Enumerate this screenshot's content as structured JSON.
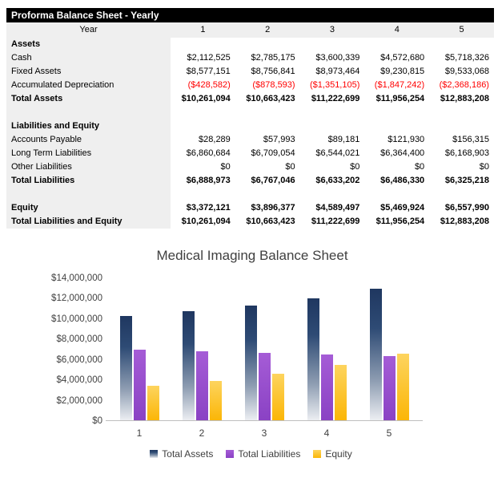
{
  "colors": {
    "table_header_bg": "#000000",
    "table_header_text": "#FFFFFF",
    "row_shade_bg": "#EFEFEF",
    "negative_value": "#FF0000",
    "axis_line": "#BFBFBF",
    "chart_text": "#404040",
    "series_total_assets": "#1F3760",
    "series_total_liabilities": "#9A4FC9",
    "series_equity": "#FBB607"
  },
  "table": {
    "title": "Proforma Balance Sheet - Yearly",
    "year_label": "Year",
    "year_columns": [
      "1",
      "2",
      "3",
      "4",
      "5"
    ],
    "rows": [
      {
        "type": "section",
        "label": "Assets",
        "values": [
          "",
          "",
          "",
          "",
          ""
        ]
      },
      {
        "type": "normal",
        "label": "Cash",
        "values": [
          "$2,112,525",
          "$2,785,175",
          "$3,600,339",
          "$4,572,680",
          "$5,718,326"
        ]
      },
      {
        "type": "normal",
        "label": "Fixed Assets",
        "values": [
          "$8,577,151",
          "$8,756,841",
          "$8,973,464",
          "$9,230,815",
          "$9,533,068"
        ]
      },
      {
        "type": "negative",
        "label": "Accumulated Depreciation",
        "values": [
          "($428,582)",
          "($878,593)",
          "($1,351,105)",
          "($1,847,242)",
          "($2,368,186)"
        ]
      },
      {
        "type": "total",
        "label": "Total Assets",
        "values": [
          "$10,261,094",
          "$10,663,423",
          "$11,222,699",
          "$11,956,254",
          "$12,883,208"
        ]
      },
      {
        "type": "spacer",
        "label": "",
        "values": [
          "",
          "",
          "",
          "",
          ""
        ]
      },
      {
        "type": "section",
        "label": "Liabilities and Equity",
        "values": [
          "",
          "",
          "",
          "",
          ""
        ]
      },
      {
        "type": "normal",
        "label": "Accounts Payable",
        "values": [
          "$28,289",
          "$57,993",
          "$89,181",
          "$121,930",
          "$156,315"
        ]
      },
      {
        "type": "normal",
        "label": "Long Term Liabilities",
        "values": [
          "$6,860,684",
          "$6,709,054",
          "$6,544,021",
          "$6,364,400",
          "$6,168,903"
        ]
      },
      {
        "type": "normal",
        "label": "Other Liabilities",
        "values": [
          "$0",
          "$0",
          "$0",
          "$0",
          "$0"
        ]
      },
      {
        "type": "total",
        "label": "Total Liabilities",
        "values": [
          "$6,888,973",
          "$6,767,046",
          "$6,633,202",
          "$6,486,330",
          "$6,325,218"
        ]
      },
      {
        "type": "spacer",
        "label": "",
        "values": [
          "",
          "",
          "",
          "",
          ""
        ]
      },
      {
        "type": "total",
        "label": "Equity",
        "values": [
          "$3,372,121",
          "$3,896,377",
          "$4,589,497",
          "$5,469,924",
          "$6,557,990"
        ]
      },
      {
        "type": "total",
        "label": "Total Liabilities and Equity",
        "values": [
          "$10,261,094",
          "$10,663,423",
          "$11,222,699",
          "$11,956,254",
          "$12,883,208"
        ]
      }
    ]
  },
  "chart_data": {
    "type": "bar",
    "title": "Medical Imaging Balance Sheet",
    "categories": [
      "1",
      "2",
      "3",
      "4",
      "5"
    ],
    "series": [
      {
        "name": "Total Assets",
        "values": [
          10261094,
          10663423,
          11222699,
          11956254,
          12883208
        ],
        "gradient": [
          "#1F3760 0%",
          "#2E4B75 30%",
          "#8E9DB2 70%",
          "#ECEEF2 100%"
        ]
      },
      {
        "name": "Total Liabilities",
        "values": [
          6888973,
          6767046,
          6633202,
          6486330,
          6325218
        ],
        "gradient": [
          "#A55CD6 0%",
          "#8A42C4 100%"
        ]
      },
      {
        "name": "Equity",
        "values": [
          3372121,
          3896377,
          4589497,
          5469924,
          6557990
        ],
        "gradient": [
          "#FDD45E 0%",
          "#FBB607 100%"
        ]
      }
    ],
    "xlabel": "",
    "ylabel": "",
    "ylim": [
      0,
      14000000
    ],
    "y_ticks": [
      "$0",
      "$2,000,000",
      "$4,000,000",
      "$6,000,000",
      "$8,000,000",
      "$10,000,000",
      "$12,000,000",
      "$14,000,000"
    ],
    "grid": false,
    "legend_position": "bottom"
  }
}
